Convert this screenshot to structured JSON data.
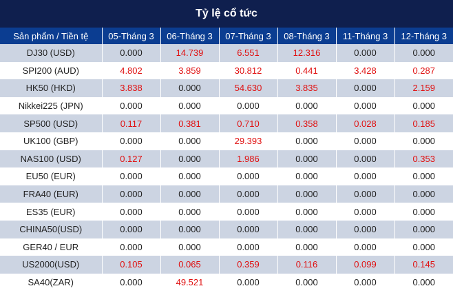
{
  "title": "Tỷ lệ cổ tức",
  "colors": {
    "title_bg": "#0f1f4e",
    "header_bg": "#0b3d91",
    "stripe": "#ccd4e2",
    "positive": "#e01010"
  },
  "columns": [
    "Sản phẩm / Tiền tệ",
    "05-Tháng 3",
    "06-Tháng 3",
    "07-Tháng 3",
    "08-Tháng 3",
    "11-Tháng 3",
    "12-Tháng 3"
  ],
  "rows": [
    {
      "product": "DJ30 (USD)",
      "values": [
        "0.000",
        "14.739",
        "6.551",
        "12.316",
        "0.000",
        "0.000"
      ]
    },
    {
      "product": "SPI200 (AUD)",
      "values": [
        "4.802",
        "3.859",
        "30.812",
        "0.441",
        "3.428",
        "0.287"
      ]
    },
    {
      "product": "HK50 (HKD)",
      "values": [
        "3.838",
        "0.000",
        "54.630",
        "3.835",
        "0.000",
        "2.159"
      ]
    },
    {
      "product": "Nikkei225 (JPN)",
      "values": [
        "0.000",
        "0.000",
        "0.000",
        "0.000",
        "0.000",
        "0.000"
      ]
    },
    {
      "product": "SP500 (USD)",
      "values": [
        "0.117",
        "0.381",
        "0.710",
        "0.358",
        "0.028",
        "0.185"
      ]
    },
    {
      "product": "UK100 (GBP)",
      "values": [
        "0.000",
        "0.000",
        "29.393",
        "0.000",
        "0.000",
        "0.000"
      ]
    },
    {
      "product": "NAS100 (USD)",
      "values": [
        "0.127",
        "0.000",
        "1.986",
        "0.000",
        "0.000",
        "0.353"
      ]
    },
    {
      "product": "EU50 (EUR)",
      "values": [
        "0.000",
        "0.000",
        "0.000",
        "0.000",
        "0.000",
        "0.000"
      ]
    },
    {
      "product": "FRA40 (EUR)",
      "values": [
        "0.000",
        "0.000",
        "0.000",
        "0.000",
        "0.000",
        "0.000"
      ]
    },
    {
      "product": "ES35 (EUR)",
      "values": [
        "0.000",
        "0.000",
        "0.000",
        "0.000",
        "0.000",
        "0.000"
      ]
    },
    {
      "product": "CHINA50(USD)",
      "values": [
        "0.000",
        "0.000",
        "0.000",
        "0.000",
        "0.000",
        "0.000"
      ]
    },
    {
      "product": "GER40 / EUR",
      "values": [
        "0.000",
        "0.000",
        "0.000",
        "0.000",
        "0.000",
        "0.000"
      ]
    },
    {
      "product": "US2000(USD)",
      "values": [
        "0.105",
        "0.065",
        "0.359",
        "0.116",
        "0.099",
        "0.145"
      ]
    },
    {
      "product": "SA40(ZAR)",
      "values": [
        "0.000",
        "49.521",
        "0.000",
        "0.000",
        "0.000",
        "0.000"
      ]
    }
  ]
}
